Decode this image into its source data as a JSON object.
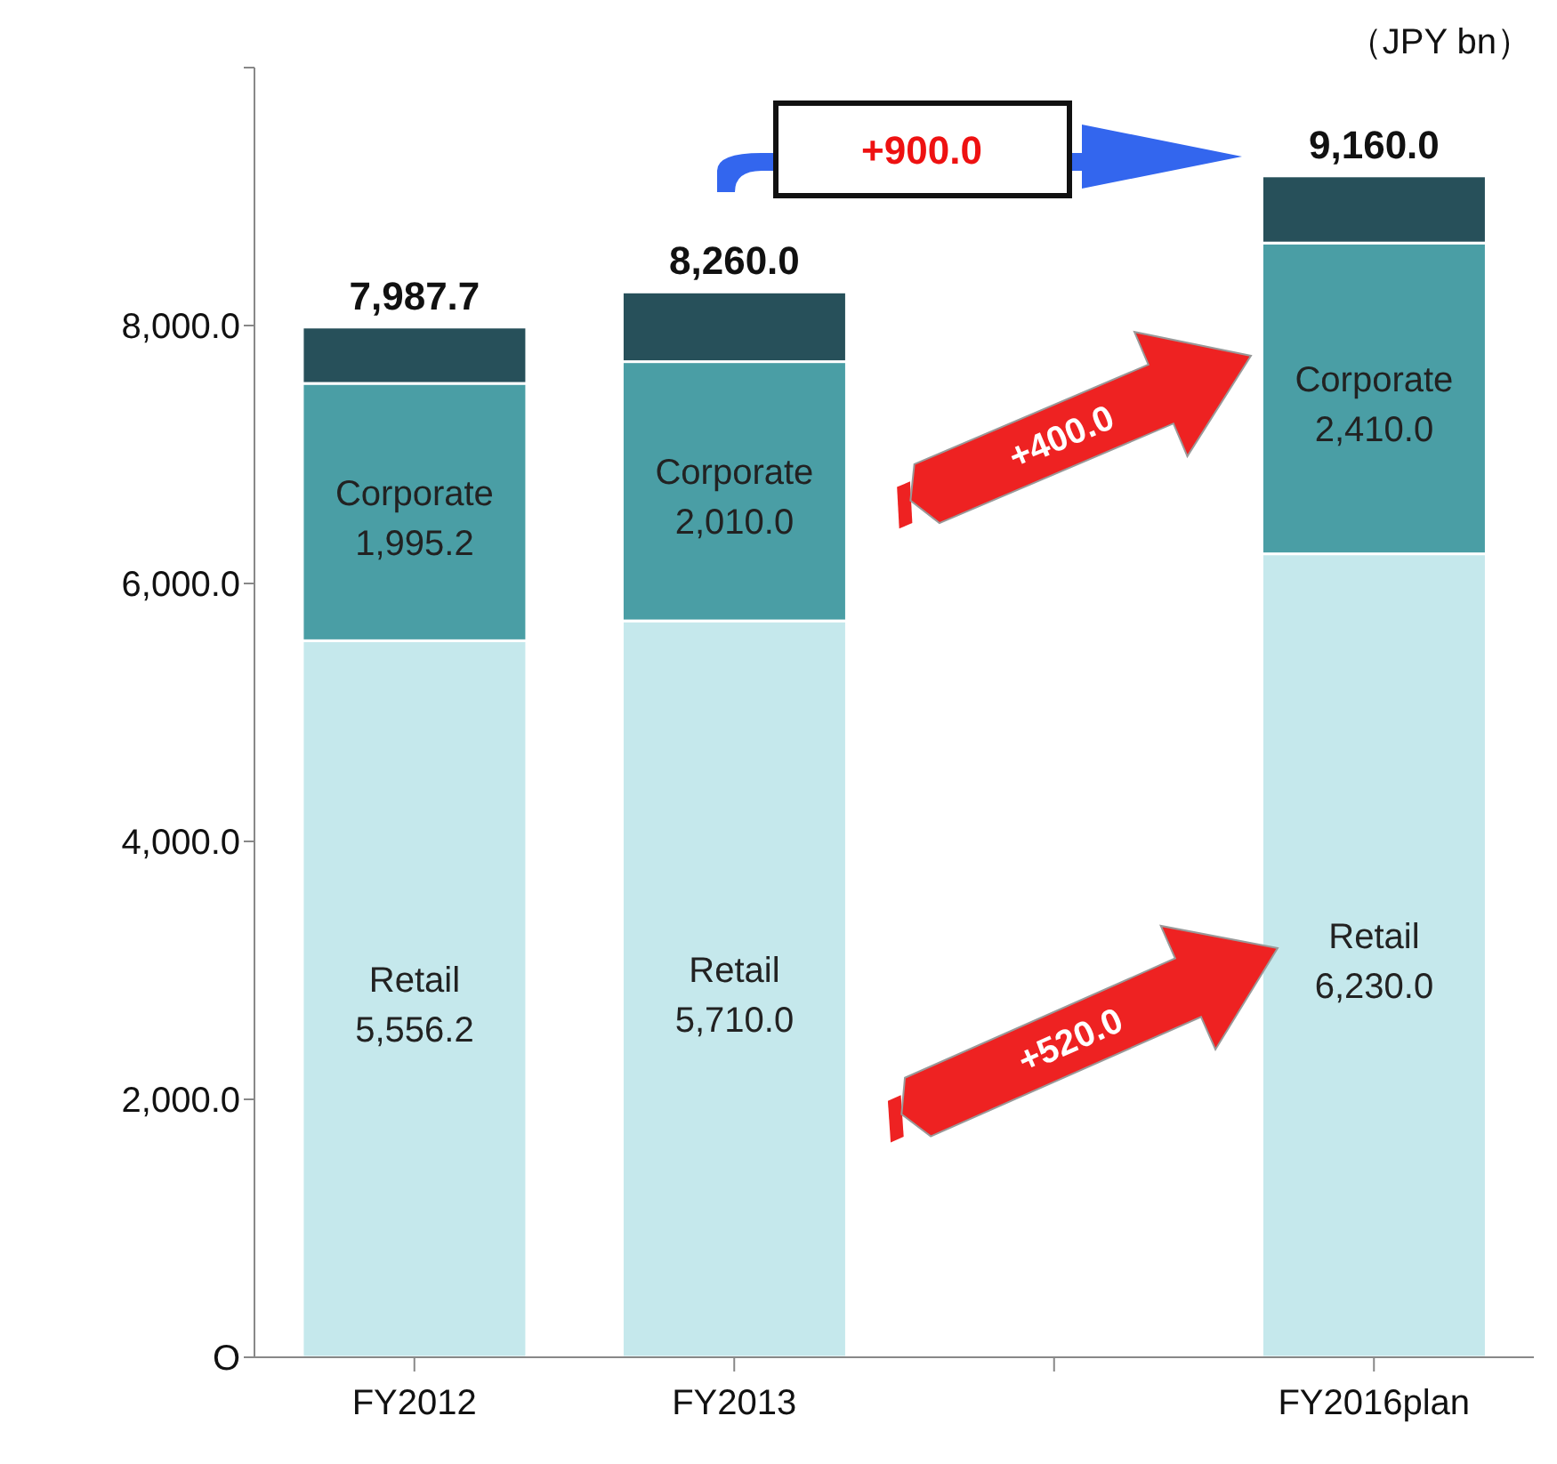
{
  "chart_data": {
    "type": "bar",
    "stacked": true,
    "categories": [
      "FY2012",
      "FY2013",
      null,
      "FY2016plan"
    ],
    "series": [
      {
        "name": "Retail",
        "color": "#c5e8ec",
        "values": [
          5556.2,
          5710.0,
          null,
          6230.0
        ],
        "value_labels": [
          "5,556.2",
          "5,710.0",
          null,
          "6,230.0"
        ]
      },
      {
        "name": "Corporate",
        "color": "#4a9ea5",
        "values": [
          1995.2,
          2010.0,
          null,
          2410.0
        ],
        "value_labels": [
          "1,995.2",
          "2,010.0",
          null,
          "2,410.0"
        ]
      },
      {
        "color": "#27505a",
        "values": [
          436.3,
          540.0,
          null,
          520.0
        ]
      }
    ],
    "totals": [
      "7,987.7",
      "8,260.0",
      null,
      "9,160.0"
    ],
    "ylim": [
      0,
      10000
    ],
    "yticks": [
      {
        "value": 0,
        "label": "O"
      },
      {
        "value": 2000,
        "label": "2,000.0"
      },
      {
        "value": 4000,
        "label": "4,000.0"
      },
      {
        "value": 6000,
        "label": "6,000.0"
      },
      {
        "value": 8000,
        "label": "8,000.0"
      },
      {
        "value": 10000,
        "label": null
      }
    ],
    "grid": false,
    "legend": false,
    "annotations": [
      "（JPY bn）",
      "+900.0",
      "+400.0",
      "+520.0"
    ]
  }
}
